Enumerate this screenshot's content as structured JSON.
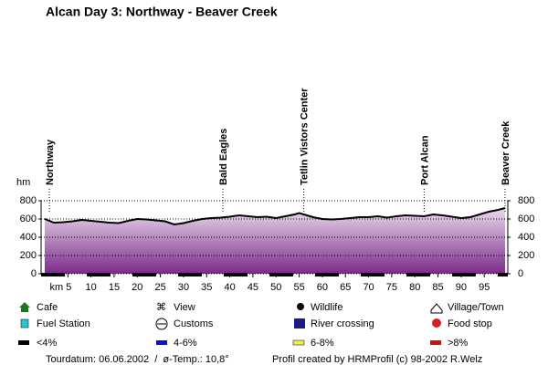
{
  "chart_data": {
    "type": "area",
    "title": "Alcan Day 3: Northway - Beaver Creek",
    "y_label": "hm",
    "x": [
      0,
      1,
      2,
      4,
      6,
      8,
      10,
      12,
      14,
      16,
      18,
      20,
      22,
      24,
      26,
      28,
      30,
      32,
      34,
      36,
      38,
      40,
      42,
      44,
      46,
      48,
      50,
      52,
      54,
      55,
      56,
      58,
      60,
      62,
      64,
      66,
      68,
      70,
      72,
      74,
      76,
      78,
      80,
      82,
      84,
      86,
      88,
      90,
      92,
      94,
      96,
      98,
      99.5
    ],
    "values": [
      600,
      580,
      560,
      565,
      575,
      590,
      580,
      570,
      560,
      555,
      580,
      600,
      595,
      585,
      575,
      540,
      555,
      580,
      600,
      610,
      615,
      625,
      640,
      630,
      620,
      625,
      610,
      630,
      650,
      665,
      650,
      620,
      600,
      595,
      600,
      610,
      620,
      620,
      630,
      615,
      630,
      640,
      635,
      630,
      650,
      640,
      625,
      610,
      620,
      650,
      680,
      700,
      720
    ],
    "color": "#000000",
    "xlim": [
      0,
      99.5
    ],
    "ylim": [
      0,
      800
    ],
    "xticks": [
      {
        "value": 5,
        "label": "km 5"
      },
      10,
      15,
      20,
      25,
      30,
      35,
      40,
      45,
      50,
      55,
      60,
      65,
      70,
      75,
      80,
      85,
      90,
      95
    ],
    "yticks": [
      0,
      200,
      400,
      600,
      800
    ],
    "grid": true,
    "places": [
      {
        "label": "Northway",
        "x": 1
      },
      {
        "label": "Bald Eagles",
        "x": 38.5
      },
      {
        "label": "Tetlin Vistors Center",
        "x": 56
      },
      {
        "label": "Port Alcan",
        "x": 82
      },
      {
        "label": "Beaver Creek",
        "x": 99.5
      }
    ],
    "legend_items": [
      "Cafe",
      "View",
      "Wildlife",
      "Village/Town",
      "Fuel Station",
      "Customs",
      "River crossing",
      "Food stop",
      "<4%",
      "4-6%",
      "6-8%",
      ">8%"
    ],
    "footer_left": "Tourdatum: 06.06.2002  /  ø-Temp.: 10,8°",
    "footer_right": "Profil created by HRMProfil (c) 98-2002 R.Welz"
  }
}
